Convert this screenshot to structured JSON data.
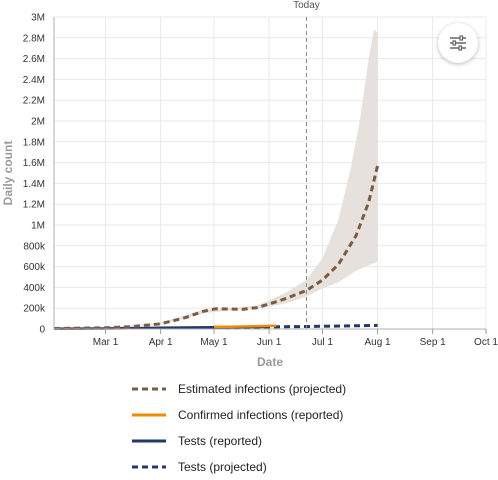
{
  "filter_button": {
    "icon": "sliders-icon"
  },
  "chart_data": {
    "type": "line",
    "xlabel": "Date",
    "ylabel": "Daily count",
    "x_range": [
      "2020-02-01",
      "2020-10-01"
    ],
    "ylim": [
      0,
      3000000
    ],
    "y_ticks": [
      0,
      200000,
      400000,
      600000,
      800000,
      1000000,
      1200000,
      1400000,
      1600000,
      1800000,
      2000000,
      2200000,
      2400000,
      2600000,
      2800000,
      3000000
    ],
    "y_tick_labels": [
      "0",
      "200k",
      "400k",
      "600k",
      "800k",
      "1M",
      "1.2M",
      "1.4M",
      "1.6M",
      "1.8M",
      "2M",
      "2.2M",
      "2.4M",
      "2.6M",
      "2.8M",
      "3M"
    ],
    "x_ticks": [
      "2020-03-01",
      "2020-04-01",
      "2020-05-01",
      "2020-06-01",
      "2020-07-01",
      "2020-08-01",
      "2020-09-01",
      "2020-10-01"
    ],
    "x_tick_labels": [
      "Mar 1",
      "Apr 1",
      "May 1",
      "Jun 1",
      "Jul 1",
      "Aug 1",
      "Sep 1",
      "Oct 1"
    ],
    "grid": true,
    "reference_line": {
      "label": "Today",
      "date": "2020-06-22"
    },
    "legend_position": "bottom",
    "series": [
      {
        "name": "Estimated infections (projected)",
        "style": "dashed",
        "color": "#7b5b42",
        "points": [
          [
            "2020-02-01",
            5000
          ],
          [
            "2020-03-01",
            12000
          ],
          [
            "2020-03-15",
            22000
          ],
          [
            "2020-04-01",
            50000
          ],
          [
            "2020-04-15",
            110000
          ],
          [
            "2020-04-25",
            170000
          ],
          [
            "2020-05-02",
            195000
          ],
          [
            "2020-05-10",
            192000
          ],
          [
            "2020-05-17",
            188000
          ],
          [
            "2020-05-25",
            205000
          ],
          [
            "2020-06-01",
            240000
          ],
          [
            "2020-06-10",
            290000
          ],
          [
            "2020-06-22",
            370000
          ],
          [
            "2020-07-01",
            470000
          ],
          [
            "2020-07-10",
            620000
          ],
          [
            "2020-07-20",
            900000
          ],
          [
            "2020-07-27",
            1220000
          ],
          [
            "2020-08-01",
            1570000
          ]
        ]
      },
      {
        "name": "Confirmed infections (reported)",
        "style": "solid",
        "color": "#f08c00",
        "points": [
          [
            "2020-05-01",
            20000
          ],
          [
            "2020-05-10",
            22000
          ],
          [
            "2020-05-20",
            25000
          ],
          [
            "2020-06-01",
            30000
          ],
          [
            "2020-06-05",
            32000
          ]
        ]
      },
      {
        "name": "Tests (reported)",
        "style": "solid",
        "color": "#22396b",
        "points": [
          [
            "2020-02-01",
            3000
          ],
          [
            "2020-03-01",
            5000
          ],
          [
            "2020-03-20",
            9000
          ],
          [
            "2020-04-01",
            12000
          ],
          [
            "2020-04-15",
            14000
          ],
          [
            "2020-05-01",
            16000
          ],
          [
            "2020-05-15",
            18000
          ],
          [
            "2020-06-01",
            20000
          ]
        ]
      },
      {
        "name": "Tests (projected)",
        "style": "dashed",
        "color": "#22396b",
        "points": [
          [
            "2020-05-01",
            16000
          ],
          [
            "2020-06-01",
            20000
          ],
          [
            "2020-06-22",
            24000
          ],
          [
            "2020-07-15",
            30000
          ],
          [
            "2020-08-01",
            35000
          ]
        ]
      }
    ],
    "uncertainty_band": {
      "series": "Estimated infections (projected)",
      "color": "#e6e1dc",
      "upper": [
        [
          "2020-02-01",
          5000
        ],
        [
          "2020-03-01",
          14000
        ],
        [
          "2020-04-01",
          60000
        ],
        [
          "2020-04-25",
          185000
        ],
        [
          "2020-05-10",
          200000
        ],
        [
          "2020-05-25",
          225000
        ],
        [
          "2020-06-01",
          275000
        ],
        [
          "2020-06-10",
          345000
        ],
        [
          "2020-06-22",
          470000
        ],
        [
          "2020-07-01",
          680000
        ],
        [
          "2020-07-10",
          1050000
        ],
        [
          "2020-07-17",
          1550000
        ],
        [
          "2020-07-22",
          2000000
        ],
        [
          "2020-07-27",
          2600000
        ],
        [
          "2020-07-30",
          2880000
        ],
        [
          "2020-08-01",
          2850000
        ]
      ],
      "lower": [
        [
          "2020-08-01",
          650000
        ],
        [
          "2020-07-20",
          560000
        ],
        [
          "2020-07-10",
          450000
        ],
        [
          "2020-07-01",
          390000
        ],
        [
          "2020-06-22",
          310000
        ],
        [
          "2020-06-10",
          245000
        ],
        [
          "2020-06-01",
          215000
        ],
        [
          "2020-05-25",
          195000
        ],
        [
          "2020-05-10",
          180000
        ],
        [
          "2020-04-25",
          150000
        ],
        [
          "2020-04-01",
          40000
        ],
        [
          "2020-03-01",
          10000
        ],
        [
          "2020-02-01",
          5000
        ]
      ]
    }
  }
}
